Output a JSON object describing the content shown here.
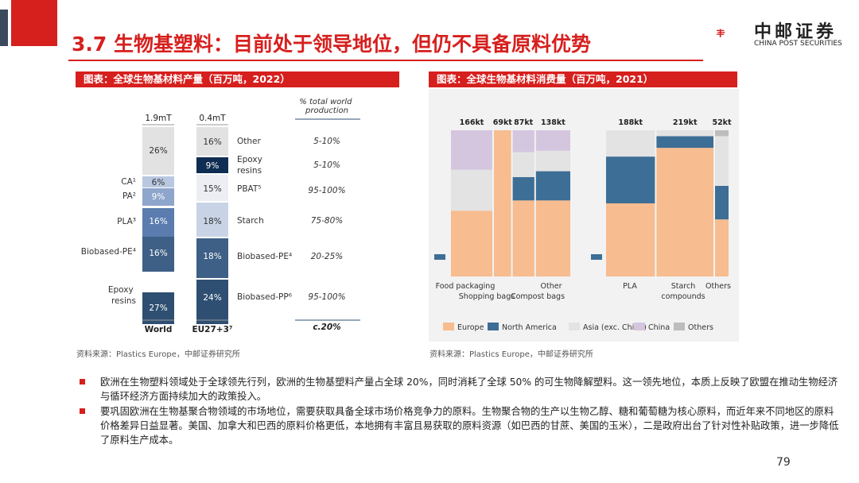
{
  "page": {
    "title": "3.7 生物基塑料：目前处于领导地位，但仍不具备原料优势",
    "page_number": "79",
    "logo": {
      "cn": "中邮证券",
      "en": "CHINA POST SECURITIES"
    }
  },
  "left_chart": {
    "header": "图表：全球生物基材料产量（百万吨，2022）",
    "source": "资料来源：Plastics Europe，中邮证券研究所",
    "col_header": "% total world production",
    "total_label": "c.20%",
    "colors": {
      "dark_navy": "#0f2d52",
      "navy": "#2e4f72",
      "mid_blue": "#5a7cae",
      "light_blue": "#9db3d4",
      "lighter_blue": "#c8d4e6",
      "grey": "#e2e2e2",
      "pale": "#f1f2f6"
    },
    "chart_data": {
      "type": "stacked-bar",
      "bars": [
        {
          "name": "World",
          "total": "1.9mT",
          "segments": [
            {
              "label": "Epoxy resins",
              "value": 27,
              "text": "27%"
            },
            {
              "label": "Biobased-PE⁴",
              "value": 16,
              "text": "16%"
            },
            {
              "label": "PLA³",
              "value": 16,
              "text": "16%"
            },
            {
              "label": "PA²",
              "value": 9,
              "text": "9%"
            },
            {
              "label": "CA¹",
              "value": 6,
              "text": "6%"
            },
            {
              "label": "",
              "value": 26,
              "text": "26%"
            }
          ]
        },
        {
          "name": "EU27+3⁷",
          "total": "0.4mT",
          "segments": [
            {
              "label": "Biobased-PP⁶",
              "value": 24,
              "text": "24%",
              "share": "95-100%"
            },
            {
              "label": "Biobased-PE⁴",
              "value": 18,
              "text": "18%",
              "share": "20-25%"
            },
            {
              "label": "Starch",
              "value": 18,
              "text": "18%",
              "share": "75-80%"
            },
            {
              "label": "PBAT⁵",
              "value": 15,
              "text": "15%",
              "share": "95-100%"
            },
            {
              "label": "Epoxy resins",
              "value": 9,
              "text": "9%",
              "share": "5-10%"
            },
            {
              "label": "Other",
              "value": 16,
              "text": "16%",
              "share": "5-10%"
            }
          ]
        }
      ]
    }
  },
  "right_chart": {
    "header": "图表：全球生物基材料消费量（百万吨，2021）",
    "source": "资料来源：Plastics Europe，中邮证券研究所",
    "chart_data": {
      "type": "marimekko",
      "regions": [
        {
          "name": "Europe",
          "color": "#f7bc8f"
        },
        {
          "name": "North America",
          "color": "#3d6e96"
        },
        {
          "name": "Asia (exc. China)",
          "color": "#e3e3e3"
        },
        {
          "name": "China",
          "color": "#d5c6e0"
        },
        {
          "name": "Others",
          "color": "#bdbdbd"
        }
      ],
      "groups": [
        {
          "columns": [
            {
              "label": "166kt",
              "shares": [
                0.45,
                0,
                0.28,
                0.27,
                0
              ]
            },
            {
              "label": "69kt",
              "shares": [
                1.0,
                0,
                0,
                0,
                0
              ]
            },
            {
              "label": "87kt",
              "shares": [
                0.52,
                0.16,
                0.17,
                0.15,
                0
              ]
            },
            {
              "label": "138kt",
              "shares": [
                0.52,
                0.2,
                0.14,
                0.14,
                0
              ]
            }
          ]
        },
        {
          "columns": [
            {
              "label": "188kt",
              "shares": [
                0.5,
                0.32,
                0.18,
                0,
                0
              ]
            },
            {
              "label": "219kt",
              "shares": [
                0.88,
                0.08,
                0.04,
                0,
                0
              ]
            },
            {
              "label": "52kt",
              "shares": [
                0.39,
                0.23,
                0.34,
                0,
                0.04
              ]
            }
          ]
        }
      ],
      "x_labels": [
        {
          "text": "Food packaging"
        },
        {
          "text": "Shopping bags"
        },
        {
          "text": "Compost bags"
        },
        {
          "text": "Other"
        },
        {
          "text": "PLA"
        },
        {
          "text": "Starch"
        },
        {
          "text": "compounds"
        },
        {
          "text": "Others"
        }
      ]
    }
  },
  "bullets": [
    "欧洲在生物塑料领域处于全球领先行列，欧洲的生物基塑料产量占全球 20%，同时消耗了全球 50% 的可生物降解塑料。这一领先地位，本质上反映了欧盟在推动生物经济与循环经济方面持续加大的政策投入。",
    "要巩固欧洲在生物基聚合物领域的市场地位，需要获取具备全球市场价格竞争力的原料。生物聚合物的生产以生物乙醇、糖和葡萄糖为核心原料，而近年来不同地区的原料价格差异日益显著。美国、加拿大和巴西的原料价格更低，本地拥有丰富且易获取的原料资源（如巴西的甘蔗、美国的玉米），二是政府出台了针对性补贴政策，进一步降低了原料生产成本。"
  ]
}
